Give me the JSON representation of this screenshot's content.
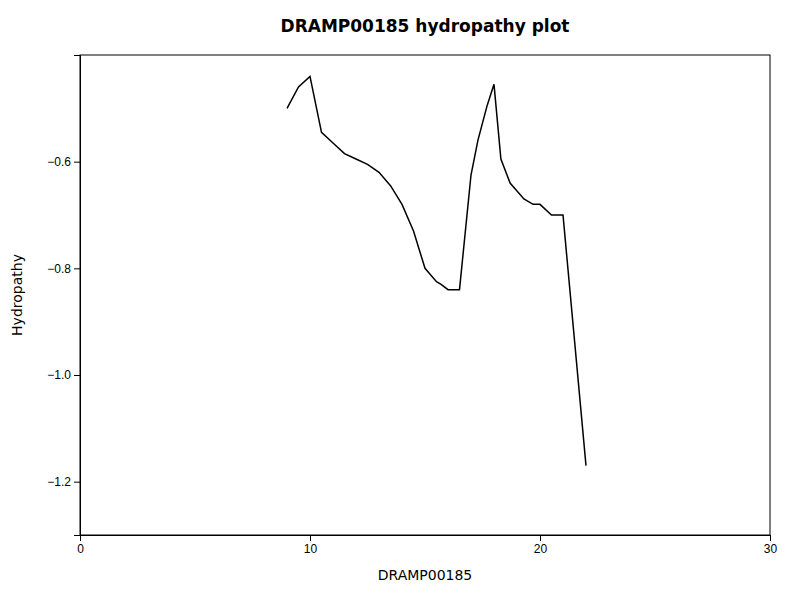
{
  "chart_data": {
    "type": "line",
    "title": "DRAMP00185 hydropathy plot",
    "xlabel": "DRAMP00185",
    "ylabel": "Hydropathy",
    "x": [
      9,
      9.5,
      10,
      10.5,
      11,
      11.5,
      12,
      12.5,
      13,
      13.5,
      14,
      14.5,
      15,
      15.5,
      15.7,
      16,
      16.5,
      17,
      17.3,
      17.7,
      18,
      18.3,
      18.7,
      19,
      19.3,
      19.7,
      20,
      20.5,
      21,
      22
    ],
    "values": [
      -0.5,
      -0.46,
      -0.44,
      -0.545,
      -0.565,
      -0.585,
      -0.595,
      -0.605,
      -0.62,
      -0.645,
      -0.68,
      -0.73,
      -0.8,
      -0.825,
      -0.83,
      -0.84,
      -0.84,
      -0.625,
      -0.56,
      -0.495,
      -0.455,
      -0.595,
      -0.64,
      -0.655,
      -0.67,
      -0.68,
      -0.68,
      -0.7,
      -0.7,
      -1.17
    ],
    "color": "#000000",
    "xlim": [
      0,
      30
    ],
    "ylim": [
      -1.3,
      -0.4
    ],
    "xticks": [
      0,
      10,
      20,
      30
    ],
    "yticks": [
      {
        "value": -1.2,
        "label": "−1.2"
      },
      {
        "value": -1.0,
        "label": "−1.0"
      },
      {
        "value": -0.8,
        "label": "−0.8"
      },
      {
        "value": -0.6,
        "label": "−0.6"
      }
    ],
    "grid": false
  }
}
